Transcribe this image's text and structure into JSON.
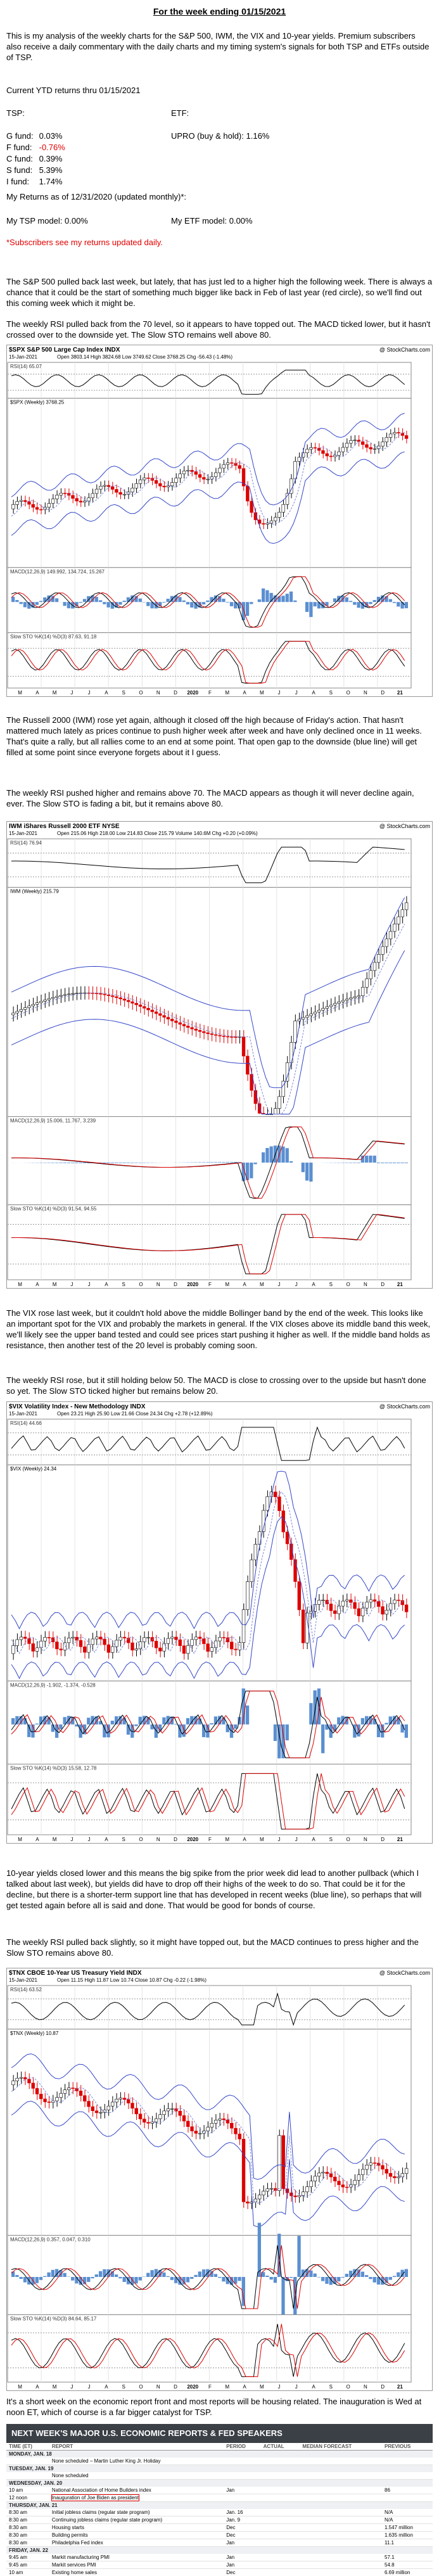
{
  "header": {
    "title": "For the week ending 01/15/2021"
  },
  "intro": "This is my analysis of the weekly charts for the S&P 500, IWM, the VIX and 10-year yields. Premium subscribers also receive a daily commentary with the daily charts and my timing system's signals for both TSP and ETFs outside of TSP.",
  "returns": {
    "heading": "Current YTD returns thru 01/15/2021",
    "tsp_label": "TSP:",
    "etf_label": "ETF:",
    "tsp": [
      {
        "label": "G fund:",
        "value": "0.03%"
      },
      {
        "label": "F fund:",
        "value": "-0.76%"
      },
      {
        "label": "C fund:",
        "value": "0.39%"
      },
      {
        "label": "S fund:",
        "value": "5.39%"
      },
      {
        "label": "I fund:",
        "value": "1.74%"
      }
    ],
    "etf": [
      {
        "label": "UPRO (buy & hold):",
        "value": "1.16%"
      }
    ],
    "my_returns": "My Returns as of 12/31/2020 (updated monthly)*:",
    "tsp_model": "My TSP model: 0.00%",
    "etf_model": "My ETF model: 0.00%",
    "note": "*Subscribers see my returns updated daily."
  },
  "axis_labels": [
    "M",
    "A",
    "M",
    "J",
    "J",
    "A",
    "S",
    "O",
    "N",
    "D",
    "2020",
    "F",
    "M",
    "A",
    "M",
    "J",
    "J",
    "A",
    "S",
    "O",
    "N",
    "D",
    "21"
  ],
  "sections": [
    {
      "paragraphs": [
        "The S&P 500 pulled back last week, but lately, that has just led to a higher high the following week. There is always a chance that it could be the start of something much bigger like back in Feb of last year (red circle), so we'll find out this coming week which it might be.",
        "The weekly RSI pulled back from the 70 level, so it appears to have topped out. The MACD ticked lower, but it hasn't crossed over to the downside yet. The Slow STO remains well above 80."
      ],
      "chart": {
        "symbol": "$SPX S&P 500 Large Cap Index INDX",
        "source": "@ StockCharts.com",
        "date": "15-Jan-2021",
        "quote": "Open 3803.14 High 3824.68 Low 3749.62 Close 3768.25 Chg -56.43 (-1.48%)",
        "panels": [
          "RSI(14) 65.07",
          "$SPX (Weekly) 3768.25",
          "MACD(12,26,9) 149.992, 134.724, 15.267",
          "Slow STO %K(14) %D(3) 87.63, 91.18"
        ]
      }
    },
    {
      "paragraphs": [
        "The Russell 2000 (IWM) rose yet again, although it closed off the high because of Friday's action. That hasn't mattered much lately as prices continue to push higher week after week and have only declined once in 11 weeks. That's quite a rally, but all rallies come to an end at some point. That open gap to the downside (blue line) will get filled at some point since everyone forgets about it I guess.",
        "The weekly RSI pushed higher and remains above 70. The MACD appears as though it will never decline again, ever. The Slow STO is fading a bit, but it remains above 80."
      ],
      "chart": {
        "symbol": "IWM iShares Russell 2000 ETF NYSE",
        "source": "@ StockCharts.com",
        "date": "15-Jan-2021",
        "quote": "Open 215.06 High 218.00 Low 214.83 Close 215.79 Volume 140.6M Chg +0.20 (+0.09%)",
        "panels": [
          "RSI(14) 76.94",
          "IWM (Weekly) 215.79",
          "MACD(12,26,9) 15.006, 11.767, 3.239",
          "Slow STO %K(14) %D(3) 91.54, 94.55"
        ]
      }
    },
    {
      "paragraphs": [
        "The VIX rose last week, but it couldn't hold above the middle Bollinger band by the end of the week. This looks like an important spot for the VIX and probably the markets in general. If the VIX closes above its middle band this week, we'll likely see the upper band tested and could see prices start pushing it higher as well. If the middle band holds as resistance, then another test of the 20 level is probably coming soon.",
        "The weekly RSI rose, but it still holding below 50. The MACD is close to crossing over to the upside but hasn't done so yet. The Slow STO ticked higher but remains below 20."
      ],
      "chart": {
        "symbol": "$VIX Volatility Index - New Methodology INDX",
        "source": "@ StockCharts.com",
        "date": "15-Jan-2021",
        "quote": "Open 23.21 High 25.90 Low 21.66 Close 24.34 Chg +2.78 (+12.89%)",
        "panels": [
          "RSI(14) 44.66",
          "$VIX (Weekly) 24.34",
          "MACD(12,26,9) -1.902, -1.374, -0.528",
          "Slow STO %K(14) %D(3) 15.58, 12.78"
        ]
      }
    },
    {
      "paragraphs": [
        "10-year yields closed lower and this means the big spike from the prior week did lead to another pullback (which I talked about last week), but yields did have to drop off their highs of the week to do so. That could be it for the decline, but there is a shorter-term support line that has developed in recent weeks (blue line), so perhaps that will get tested again before all is said and done. That would be good for bonds of course.",
        "The weekly RSI pulled back slightly, so it might have topped out, but the MACD continues to press higher and the Slow STO remains above 80."
      ],
      "chart": {
        "symbol": "$TNX CBOE 10-Year US Treasury Yield INDX",
        "source": "@ StockCharts.com",
        "date": "15-Jan-2021",
        "quote": "Open 11.15 High 11.87 Low 10.74 Close 10.87 Chg -0.22 (-1.98%)",
        "panels": [
          "RSI(14) 63.52",
          "$TNX (Weekly) 10.87",
          "MACD(12,26,9) 0.357, 0.047, 0.310",
          "Slow STO %K(14) %D(3) 84.64, 85.17"
        ]
      }
    }
  ],
  "closing": "It's a short week on the economic report front and most reports will be housing related. The inauguration is Wed at noon ET, which of course is a far bigger catalyst for TSP.",
  "calendar": {
    "title": "NEXT WEEK'S MAJOR U.S. ECONOMIC REPORTS & FED SPEAKERS",
    "columns": [
      "TIME (ET)",
      "REPORT",
      "PERIOD",
      "ACTUAL",
      "MEDIAN FORECAST",
      "PREVIOUS"
    ],
    "days": [
      {
        "day": "MONDAY, JAN. 18",
        "rows": [
          {
            "report": "None scheduled – Martin Luther King Jr. Holiday"
          }
        ]
      },
      {
        "day": "TUESDAY, JAN. 19",
        "rows": [
          {
            "report": "None scheduled"
          }
        ]
      },
      {
        "day": "WEDNESDAY, JAN. 20",
        "rows": [
          {
            "time": "10 am",
            "report": "National Association of Home Builders index",
            "period": "Jan",
            "previous": "86"
          },
          {
            "time": "12 noon",
            "report": "Inauguration of Joe Biden as president"
          }
        ]
      },
      {
        "day": "THURSDAY, JAN. 21",
        "rows": [
          {
            "time": "8:30 am",
            "report": "Initial jobless claims (regular state program)",
            "period": "Jan. 16",
            "previous": "N/A"
          },
          {
            "time": "8:30 am",
            "report": "Continuing jobless claims (regular state program)",
            "period": "Jan. 9",
            "previous": "N/A"
          },
          {
            "time": "8:30 am",
            "report": "Housing starts",
            "period": "Dec",
            "previous": "1.547 million"
          },
          {
            "time": "8:30 am",
            "report": "Building permits",
            "period": "Dec",
            "previous": "1.635 million"
          },
          {
            "time": "8:30 am",
            "report": "Philadelphia Fed index",
            "period": "Jan",
            "previous": "11.1"
          }
        ]
      },
      {
        "day": "FRIDAY, JAN. 22",
        "rows": [
          {
            "time": "9:45 am",
            "report": "Markit manufacturing PMI",
            "period": "Jan",
            "previous": "57.1"
          },
          {
            "time": "9:45 am",
            "report": "Markit services PMI",
            "period": "Jan",
            "previous": "54.8"
          },
          {
            "time": "10 am",
            "report": "Existing home sales",
            "period": "Dec",
            "previous": "6.69 million"
          }
        ]
      }
    ]
  }
}
